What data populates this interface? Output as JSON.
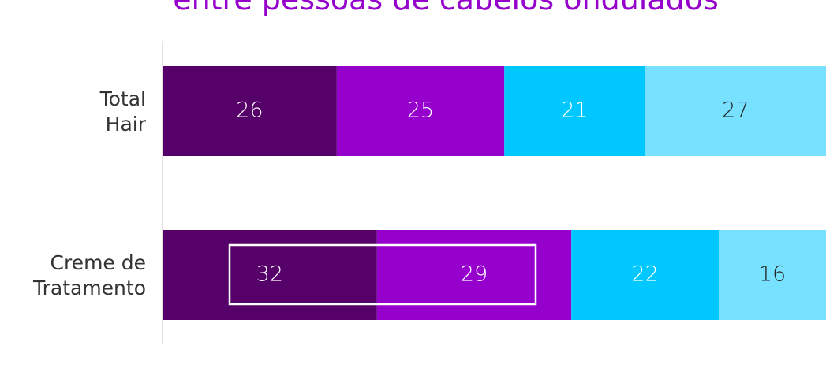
{
  "chart_data": {
    "type": "stacked_barh",
    "title": "entre pessoas de cabelos ondulados",
    "categories": [
      [
        "Total",
        "Hair"
      ],
      [
        "Creme de",
        "Tratamento"
      ]
    ],
    "series": [
      {
        "color": "#560069",
        "values": [
          26,
          32
        ]
      },
      {
        "color": "#9600cc",
        "values": [
          25,
          29
        ]
      },
      {
        "color": "#00c8ff",
        "values": [
          21,
          22
        ]
      },
      {
        "color": "#78e1ff",
        "values": [
          27,
          16
        ]
      }
    ],
    "xlim": [
      0,
      99
    ]
  }
}
